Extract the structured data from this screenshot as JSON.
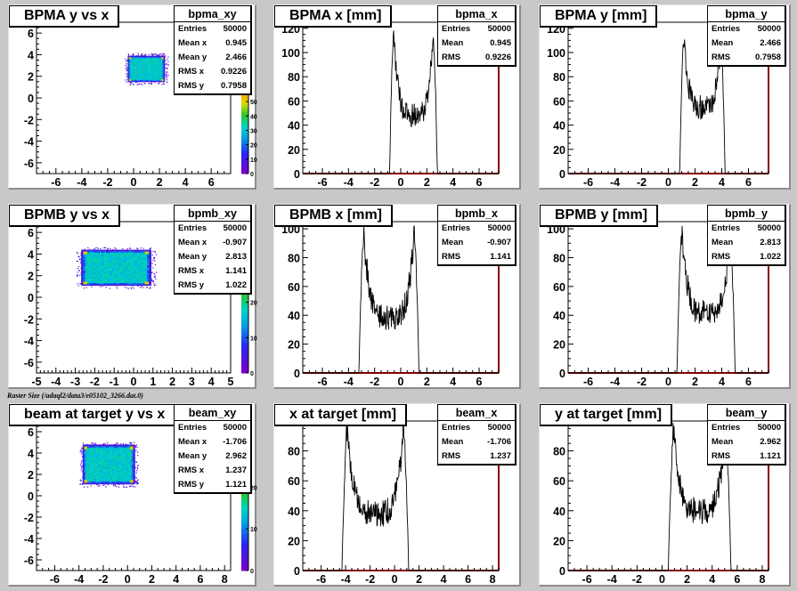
{
  "caption": "Raster Size (/adaql2/data3/e05102_3266.dat.0)",
  "chart_data": [
    {
      "type": "heatmap",
      "title": "BPMA y vs x",
      "stats": {
        "name": "bpma_xy",
        "rows": [
          [
            "Entries",
            "50000"
          ],
          [
            "Mean x",
            "0.945"
          ],
          [
            "Mean y",
            "2.466"
          ],
          [
            "RMS x",
            "0.9226"
          ],
          [
            "RMS y",
            "0.7958"
          ]
        ]
      },
      "xlim": [
        -7.5,
        7.5
      ],
      "ylim": [
        -7,
        7
      ],
      "xticks": [
        -6,
        -4,
        -2,
        0,
        2,
        4,
        6
      ],
      "yticks": [
        -6,
        -4,
        -2,
        0,
        2,
        4,
        6
      ],
      "rect": {
        "x": [
          -0.45,
          2.4
        ],
        "y": [
          1.5,
          3.9
        ]
      },
      "zticks": [
        {
          "v": 0,
          "label": "0"
        },
        {
          "v": 10,
          "label": "10"
        },
        {
          "v": 20,
          "label": "20"
        },
        {
          "v": 30,
          "label": "30"
        },
        {
          "v": 40,
          "label": "40"
        },
        {
          "v": 50,
          "label": "50"
        }
      ],
      "zmax": 55
    },
    {
      "type": "line",
      "title": "BPMA x [mm]",
      "stats": {
        "name": "bpma_x",
        "rows": [
          [
            "Entries",
            "50000"
          ],
          [
            "Mean",
            "0.945"
          ],
          [
            "RMS",
            "0.9226"
          ]
        ]
      },
      "xlim": [
        -7.5,
        7.5
      ],
      "ylim": [
        0,
        125
      ],
      "xticks": [
        -6,
        -4,
        -2,
        0,
        2,
        4,
        6
      ],
      "yticks": [
        0,
        20,
        40,
        60,
        80,
        100,
        120
      ],
      "profile": {
        "lo": -0.55,
        "hi": 2.5,
        "edge": 0.3,
        "peak": 118,
        "floor": 48,
        "noise": 10
      }
    },
    {
      "type": "line",
      "title": "BPMA y [mm]",
      "stats": {
        "name": "bpma_y",
        "rows": [
          [
            "Entries",
            "50000"
          ],
          [
            "Mean",
            "2.466"
          ],
          [
            "RMS",
            "0.7958"
          ]
        ]
      },
      "xlim": [
        -7.5,
        7.5
      ],
      "ylim": [
        0,
        125
      ],
      "xticks": [
        -6,
        -4,
        -2,
        0,
        2,
        4,
        6
      ],
      "yticks": [
        0,
        20,
        40,
        60,
        80,
        100,
        120
      ],
      "profile": {
        "lo": 1.15,
        "hi": 3.95,
        "edge": 0.3,
        "peak": 115,
        "floor": 55,
        "noise": 10
      }
    },
    {
      "type": "heatmap",
      "title": "BPMB y vs x",
      "stats": {
        "name": "bpmb_xy",
        "rows": [
          [
            "Entries",
            "50000"
          ],
          [
            "Mean x",
            "-0.907"
          ],
          [
            "Mean y",
            "2.813"
          ],
          [
            "RMS x",
            "1.141"
          ],
          [
            "RMS y",
            "1.022"
          ]
        ]
      },
      "xlim": [
        -5,
        5
      ],
      "ylim": [
        -7,
        7
      ],
      "xticks": [
        -5,
        -4,
        -3,
        -2,
        -1,
        0,
        1,
        2,
        3,
        4,
        5
      ],
      "yticks": [
        -6,
        -4,
        -2,
        0,
        2,
        4,
        6
      ],
      "rect": {
        "x": [
          -2.7,
          0.9
        ],
        "y": [
          1.1,
          4.4
        ]
      },
      "zticks": [
        {
          "v": 0,
          "label": "0"
        },
        {
          "v": 10,
          "label": "10"
        },
        {
          "v": 20,
          "label": "20"
        }
      ],
      "zmax": 30
    },
    {
      "type": "line",
      "title": "BPMB x [mm]",
      "stats": {
        "name": "bpmb_x",
        "rows": [
          [
            "Entries",
            "50000"
          ],
          [
            "Mean",
            "-0.907"
          ],
          [
            "RMS",
            "1.141"
          ]
        ]
      },
      "xlim": [
        -7.5,
        7.5
      ],
      "ylim": [
        0,
        105
      ],
      "xticks": [
        -6,
        -4,
        -2,
        0,
        2,
        4,
        6
      ],
      "yticks": [
        0,
        20,
        40,
        60,
        80,
        100
      ],
      "profile": {
        "lo": -2.85,
        "hi": 1.05,
        "edge": 0.35,
        "peak": 98,
        "floor": 38,
        "noise": 9
      }
    },
    {
      "type": "line",
      "title": "BPMB y [mm]",
      "stats": {
        "name": "bpmb_y",
        "rows": [
          [
            "Entries",
            "50000"
          ],
          [
            "Mean",
            "2.813"
          ],
          [
            "RMS",
            "1.022"
          ]
        ]
      },
      "xlim": [
        -7.5,
        7.5
      ],
      "ylim": [
        0,
        105
      ],
      "xticks": [
        -6,
        -4,
        -2,
        0,
        2,
        4,
        6
      ],
      "yticks": [
        0,
        20,
        40,
        60,
        80,
        100
      ],
      "profile": {
        "lo": 1.0,
        "hi": 4.65,
        "edge": 0.35,
        "peak": 98,
        "floor": 42,
        "noise": 9
      }
    },
    {
      "type": "heatmap",
      "title": "beam at target y vs x",
      "stats": {
        "name": "beam_xy",
        "rows": [
          [
            "Entries",
            "50000"
          ],
          [
            "Mean x",
            "-1.706"
          ],
          [
            "Mean y",
            "2.962"
          ],
          [
            "RMS x",
            "1.237"
          ],
          [
            "RMS y",
            "1.121"
          ]
        ]
      },
      "xlim": [
        -7.5,
        8.5
      ],
      "ylim": [
        -7,
        7
      ],
      "xticks": [
        -6,
        -4,
        -2,
        0,
        2,
        4,
        6,
        8
      ],
      "yticks": [
        -6,
        -4,
        -2,
        0,
        2,
        4,
        6
      ],
      "rect": {
        "x": [
          -3.7,
          0.6
        ],
        "y": [
          1.1,
          4.8
        ]
      },
      "zticks": [
        {
          "v": 0,
          "label": "0"
        },
        {
          "v": 10,
          "label": "10"
        },
        {
          "v": 20,
          "label": "20"
        }
      ],
      "zmax": 25
    },
    {
      "type": "line",
      "title": "x at target [mm]",
      "stats": {
        "name": "beam_x",
        "rows": [
          [
            "Entries",
            "50000"
          ],
          [
            "Mean",
            "-1.706"
          ],
          [
            "RMS",
            "1.237"
          ]
        ]
      },
      "xlim": [
        -7.5,
        8.5
      ],
      "ylim": [
        0,
        100
      ],
      "xticks": [
        -6,
        -4,
        -2,
        0,
        2,
        4,
        6,
        8
      ],
      "yticks": [
        0,
        20,
        40,
        60,
        80,
        100
      ],
      "profile": {
        "lo": -3.9,
        "hi": 0.75,
        "edge": 0.4,
        "peak": 96,
        "floor": 38,
        "noise": 9
      }
    },
    {
      "type": "line",
      "title": "y at target [mm]",
      "stats": {
        "name": "beam_y",
        "rows": [
          [
            "Entries",
            "50000"
          ],
          [
            "Mean",
            "2.962"
          ],
          [
            "RMS",
            "1.121"
          ]
        ]
      },
      "xlim": [
        -7.5,
        8.5
      ],
      "ylim": [
        0,
        100
      ],
      "xticks": [
        -6,
        -4,
        -2,
        0,
        2,
        4,
        6,
        8
      ],
      "yticks": [
        0,
        20,
        40,
        60,
        80,
        100
      ],
      "profile": {
        "lo": 0.9,
        "hi": 5.1,
        "edge": 0.4,
        "peak": 96,
        "floor": 40,
        "noise": 9
      }
    }
  ]
}
